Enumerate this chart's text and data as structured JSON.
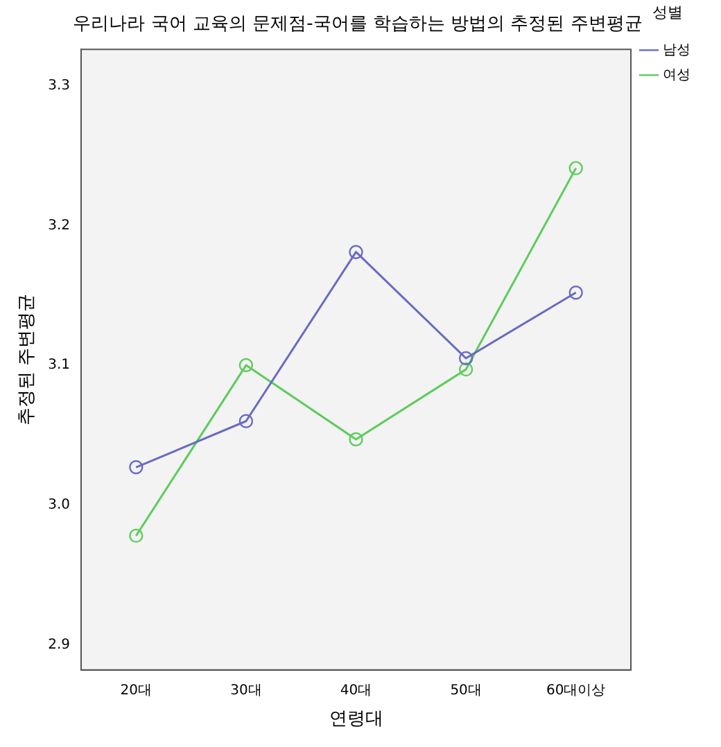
{
  "chart_data": {
    "type": "line",
    "title": "우리나라 국어 교육의 문제점-국어를 학습하는 방법의 추정된 주변평균",
    "xlabel": "연령대",
    "ylabel": "추정된 주변평균",
    "legend_title": "성별",
    "categories": [
      "20대",
      "30대",
      "40대",
      "50대",
      "60대이상"
    ],
    "series": [
      {
        "name": "남성",
        "color": "#6a6ac4",
        "values": [
          3.027,
          3.06,
          3.181,
          3.105,
          3.152
        ]
      },
      {
        "name": "여성",
        "color": "#5ccc5c",
        "values": [
          2.978,
          3.1,
          3.047,
          3.097,
          3.241
        ]
      }
    ],
    "ylim": [
      2.882,
      3.326
    ],
    "yticks": [
      {
        "value": 2.9,
        "label": "2.9"
      },
      {
        "value": 3.0,
        "label": "3.0"
      },
      {
        "value": 3.1,
        "label": "3.1"
      },
      {
        "value": 3.2,
        "label": "3.2"
      },
      {
        "value": 3.3,
        "label": "3.3"
      }
    ],
    "grid": false,
    "legend": "right",
    "marker": "circle",
    "line_style": "solid"
  }
}
